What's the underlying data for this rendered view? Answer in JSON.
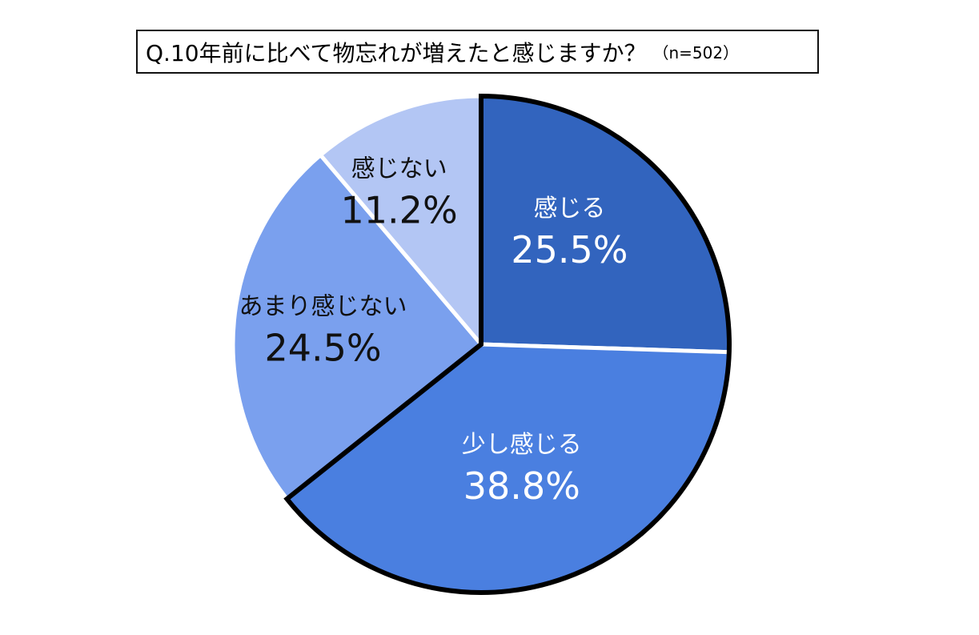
{
  "title": {
    "main": "Q.10年前に比べて物忘れが増えたと感じますか？",
    "sample": "（n=502）"
  },
  "chart_data": {
    "type": "pie",
    "title": "Q.10年前に比べて物忘れが増えたと感じますか？（n=502）",
    "categories": [
      "感じる",
      "少し感じる",
      "あまり感じない",
      "感じない"
    ],
    "values": [
      25.5,
      38.8,
      24.5,
      11.2
    ],
    "labels": [
      "25.5%",
      "38.8%",
      "24.5%",
      "11.2%"
    ],
    "colors": [
      "#3264be",
      "#4a7fe0",
      "#7aa0ee",
      "#b3c6f4"
    ],
    "label_colors": [
      "#ffffff",
      "#ffffff",
      "#111111",
      "#111111"
    ],
    "start_angle": "12 o'clock, clockwise",
    "highlight_outline": [
      "感じる",
      "少し感じる"
    ]
  }
}
